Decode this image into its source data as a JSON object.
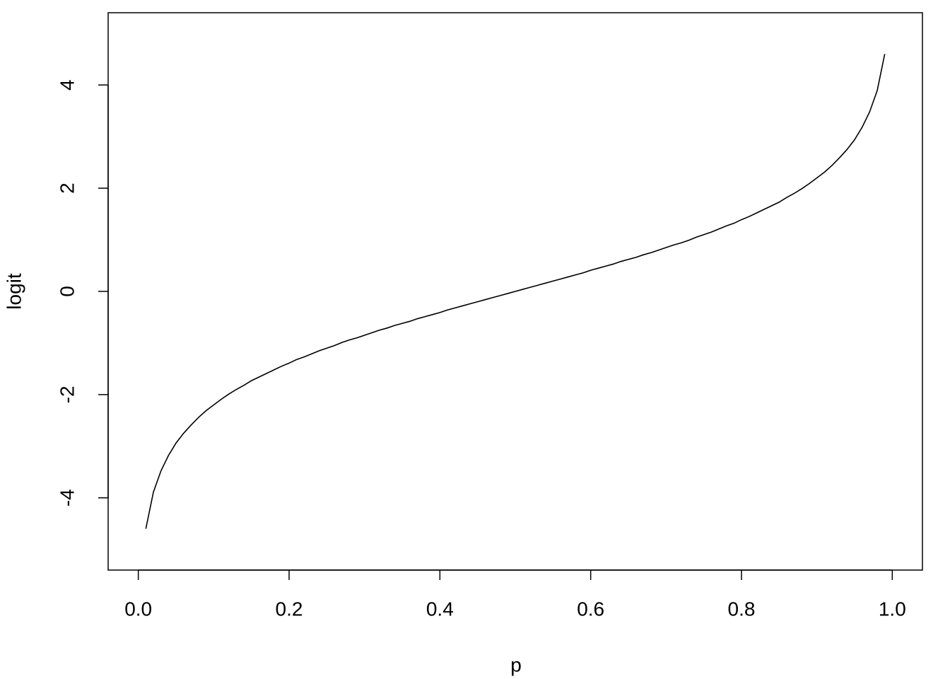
{
  "chart_data": {
    "type": "line",
    "xlabel": "p",
    "ylabel": "logit",
    "x": [
      0.01,
      0.02,
      0.03,
      0.04,
      0.05,
      0.06,
      0.07,
      0.08,
      0.09,
      0.1,
      0.11,
      0.12,
      0.13,
      0.14,
      0.15,
      0.16,
      0.17,
      0.18,
      0.19,
      0.2,
      0.21,
      0.22,
      0.23,
      0.24,
      0.25,
      0.26,
      0.27,
      0.28,
      0.29,
      0.3,
      0.31,
      0.32,
      0.33,
      0.34,
      0.35,
      0.36,
      0.37,
      0.38,
      0.39,
      0.4,
      0.41,
      0.42,
      0.43,
      0.44,
      0.45,
      0.46,
      0.47,
      0.48,
      0.49,
      0.5,
      0.51,
      0.52,
      0.53,
      0.54,
      0.55,
      0.56,
      0.57,
      0.58,
      0.59,
      0.6,
      0.61,
      0.62,
      0.63,
      0.64,
      0.65,
      0.66,
      0.67,
      0.68,
      0.69,
      0.7,
      0.71,
      0.72,
      0.73,
      0.74,
      0.75,
      0.76,
      0.77,
      0.78,
      0.79,
      0.8,
      0.81,
      0.82,
      0.83,
      0.84,
      0.85,
      0.86,
      0.87,
      0.88,
      0.89,
      0.9,
      0.91,
      0.92,
      0.93,
      0.94,
      0.95,
      0.96,
      0.97,
      0.98,
      0.99
    ],
    "values": [
      -4.6,
      -3.89,
      -3.48,
      -3.18,
      -2.94,
      -2.75,
      -2.59,
      -2.44,
      -2.31,
      -2.2,
      -2.09,
      -1.99,
      -1.9,
      -1.82,
      -1.73,
      -1.66,
      -1.59,
      -1.52,
      -1.45,
      -1.39,
      -1.32,
      -1.27,
      -1.21,
      -1.15,
      -1.1,
      -1.05,
      -0.99,
      -0.94,
      -0.9,
      -0.85,
      -0.8,
      -0.75,
      -0.71,
      -0.66,
      -0.62,
      -0.58,
      -0.53,
      -0.49,
      -0.45,
      -0.41,
      -0.36,
      -0.32,
      -0.28,
      -0.24,
      -0.2,
      -0.16,
      -0.12,
      -0.08,
      -0.04,
      0,
      0.04,
      0.08,
      0.12,
      0.16,
      0.2,
      0.24,
      0.28,
      0.32,
      0.36,
      0.41,
      0.45,
      0.49,
      0.53,
      0.58,
      0.62,
      0.66,
      0.71,
      0.75,
      0.8,
      0.85,
      0.9,
      0.94,
      0.99,
      1.05,
      1.1,
      1.15,
      1.21,
      1.27,
      1.32,
      1.39,
      1.45,
      1.52,
      1.59,
      1.66,
      1.73,
      1.82,
      1.9,
      1.99,
      2.09,
      2.2,
      2.31,
      2.44,
      2.59,
      2.75,
      2.94,
      3.18,
      3.48,
      3.89,
      4.6
    ],
    "color": "#000000",
    "xlim": [
      -0.04,
      1.04
    ],
    "xticks": [
      {
        "value": 0,
        "label": "0.0"
      },
      0.2,
      0.4,
      0.6,
      0.8,
      {
        "value": 1,
        "label": "1.0"
      }
    ],
    "ylim": [
      -5.4,
      5.4
    ],
    "yticks": [
      -4,
      -2,
      0,
      2,
      4
    ]
  }
}
